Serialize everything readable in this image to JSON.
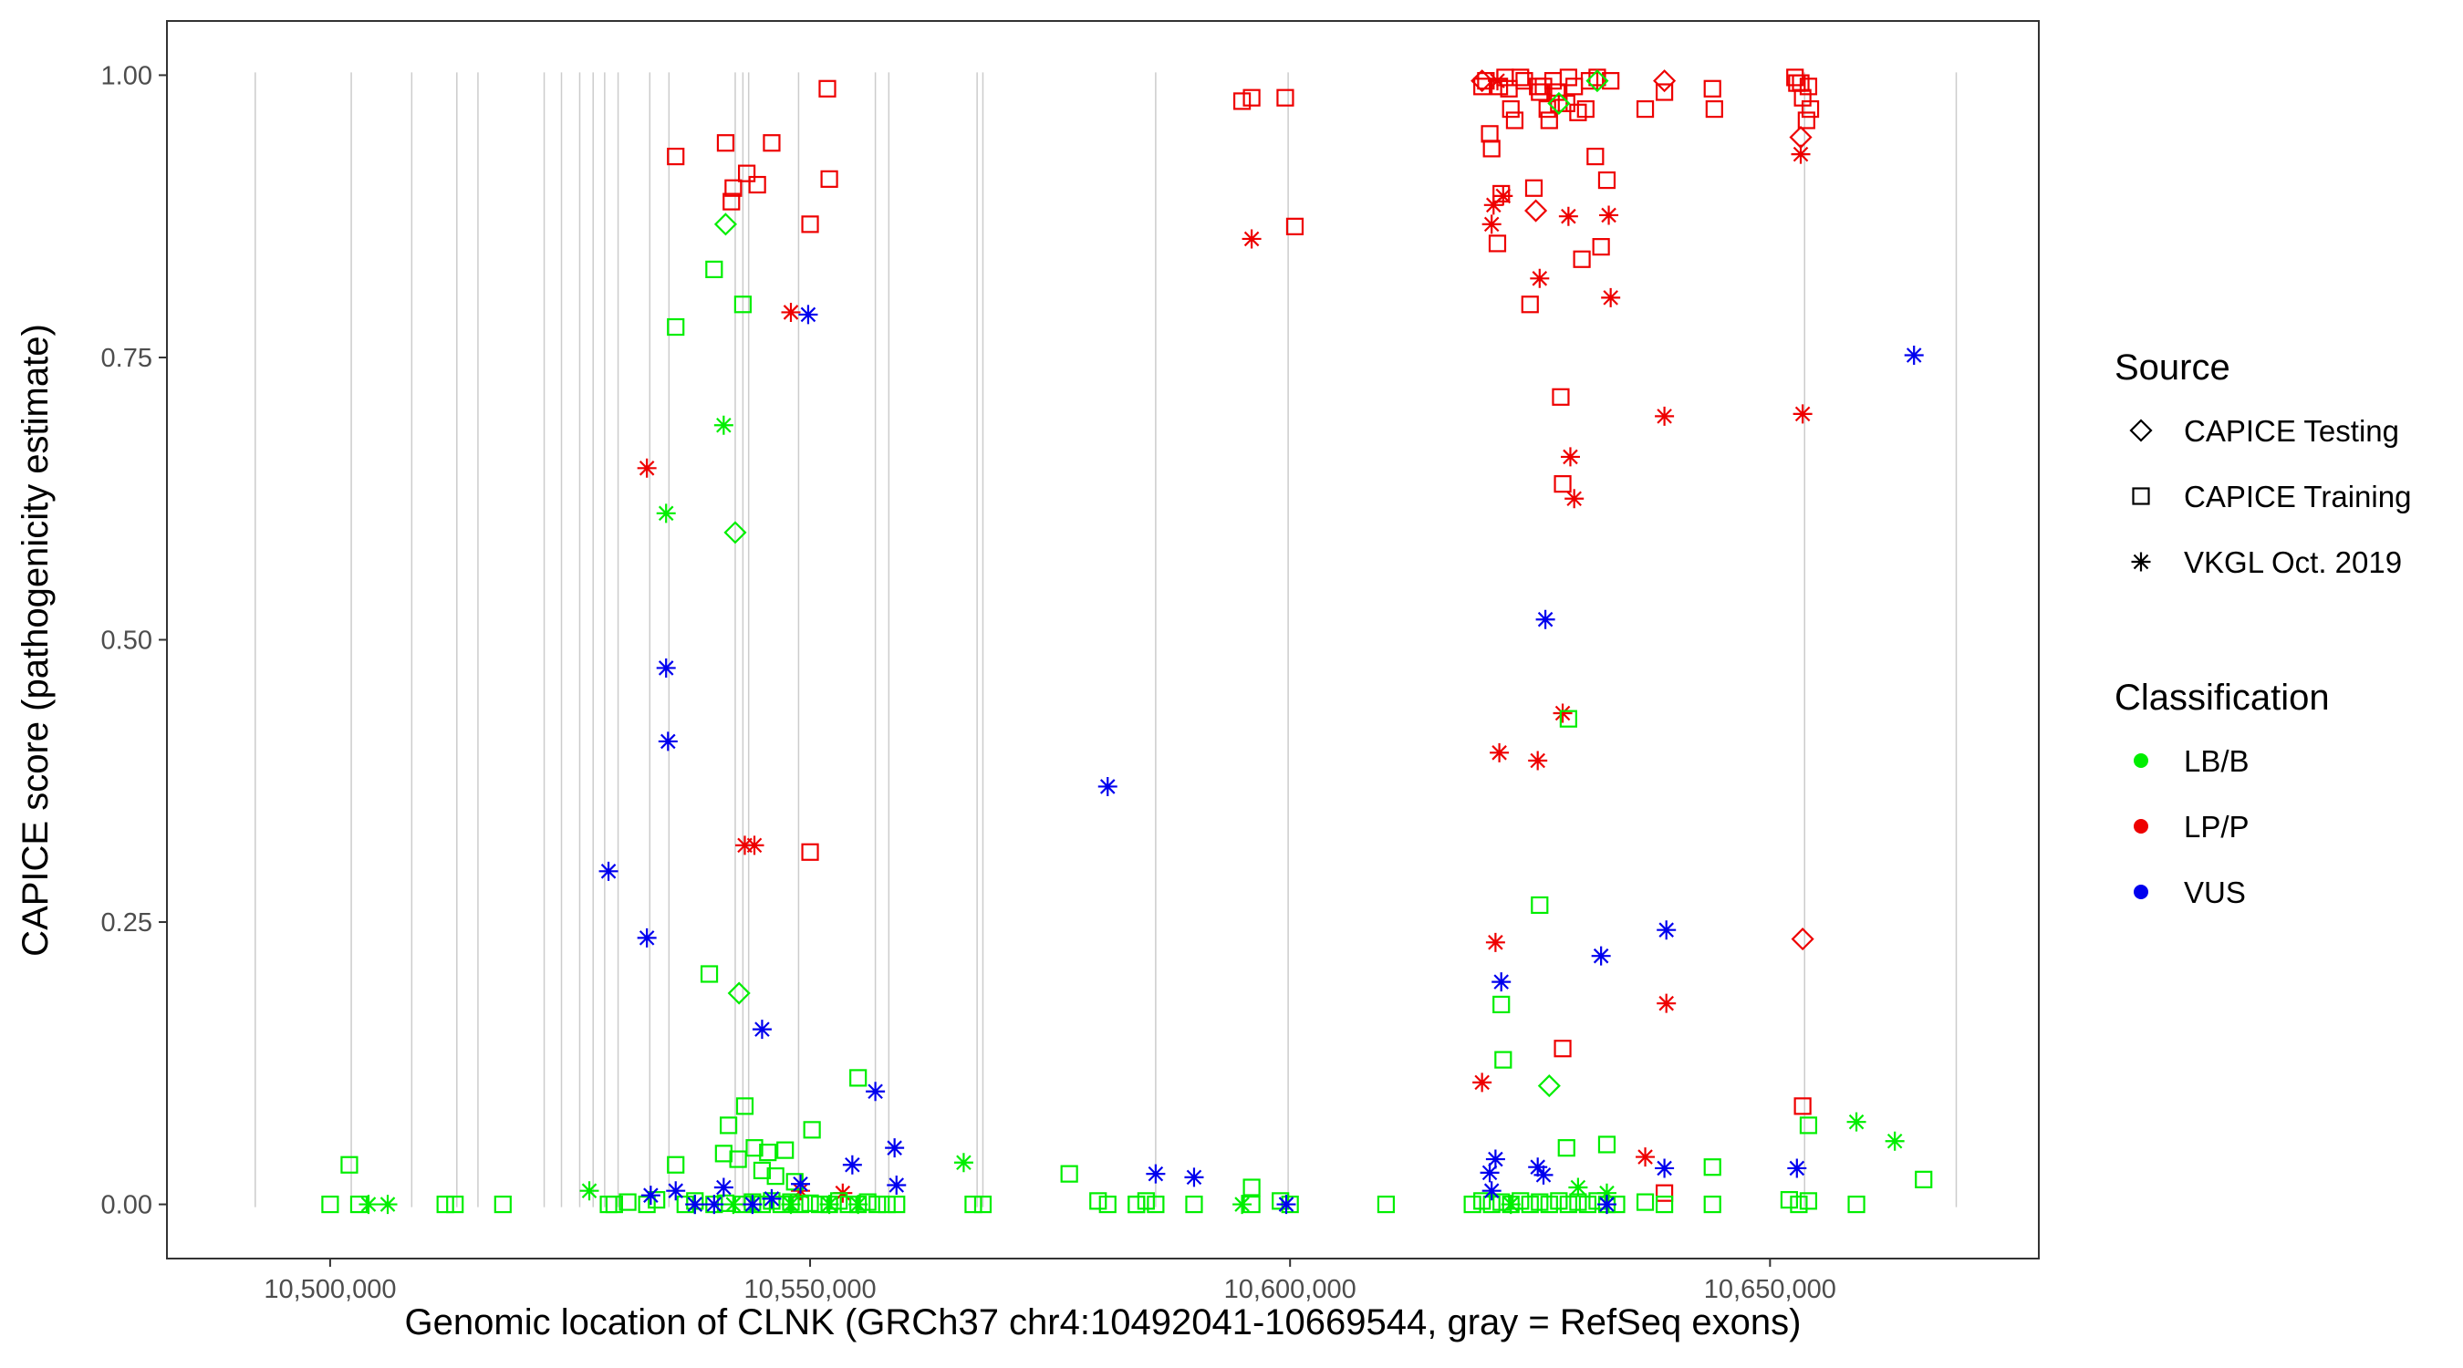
{
  "chart_data": {
    "type": "scatter",
    "title": "",
    "xlabel": "Genomic location of CLNK (GRCh37 chr4:10492041-10669544, gray = RefSeq exons)",
    "ylabel": "CAPICE score (pathogenicity estimate)",
    "xlim": [
      10483000,
      10678000
    ],
    "ylim": [
      -0.048,
      1.048
    ],
    "xticks": [
      10500000,
      10550000,
      10600000,
      10650000
    ],
    "xtick_labels": [
      "10,500,000",
      "10,550,000",
      "10,600,000",
      "10,650,000"
    ],
    "yticks": [
      0,
      0.25,
      0.5,
      0.75,
      1.0
    ],
    "ytick_labels": [
      "0.00",
      "0.25",
      "0.50",
      "0.75",
      "1.00"
    ],
    "grid": false,
    "exon_lines": [
      10492200,
      10502200,
      10508500,
      10513200,
      10515400,
      10522300,
      10524100,
      10526000,
      10527400,
      10528600,
      10530000,
      10533300,
      10535300,
      10542200,
      10543000,
      10543600,
      10548800,
      10556800,
      10558200,
      10567400,
      10568000,
      10586000,
      10599800,
      10653600,
      10669400
    ],
    "legend": {
      "placement": "right",
      "source_title": "Source",
      "source_items": [
        {
          "label": "CAPICE Testing",
          "shape": "diamond"
        },
        {
          "label": "CAPICE Training",
          "shape": "square"
        },
        {
          "label": "VKGL Oct. 2019",
          "shape": "asterisk"
        }
      ],
      "class_title": "Classification",
      "class_items": [
        {
          "label": "LB/B",
          "color": "#00ee00"
        },
        {
          "label": "LP/P",
          "color": "#ee0000"
        },
        {
          "label": "VUS",
          "color": "#0000ee"
        }
      ]
    },
    "colors": {
      "LB/B": "#00ee00",
      "LP/P": "#ee0000",
      "VUS": "#0000ee"
    },
    "series": [
      {
        "name": "LP/P CAPICE Training",
        "classification": "LP/P",
        "shape": "square",
        "x": [
          10536000,
          10541200,
          10541800,
          10542000,
          10543400,
          10544500,
          10546000,
          10550000,
          10551800,
          10552000,
          10595000,
          10596000,
          10599500,
          10600500,
          10620000,
          10620400,
          10620800,
          10621000,
          10621600,
          10621800,
          10622000,
          10622400,
          10622800,
          10623000,
          10623400,
          10624000,
          10624400,
          10625000,
          10625400,
          10625800,
          10626000,
          10626400,
          10626800,
          10627000,
          10627400,
          10627800,
          10628000,
          10628200,
          10628400,
          10628800,
          10629000,
          10629600,
          10630000,
          10630400,
          10630800,
          10631200,
          10631800,
          10632000,
          10632400,
          10633000,
          10633400,
          10637000,
          10639000,
          10644000,
          10644200,
          10652600,
          10652800,
          10653200,
          10653400,
          10653800,
          10654000,
          10654200,
          10550000,
          10653400
        ],
        "y": [
          0.928,
          0.94,
          0.888,
          0.9,
          0.913,
          0.903,
          0.94,
          0.868,
          0.988,
          0.908,
          0.977,
          0.98,
          0.98,
          0.866,
          0.99,
          0.995,
          0.948,
          0.935,
          0.851,
          0.99,
          0.895,
          0.998,
          0.988,
          0.97,
          0.96,
          0.998,
          0.995,
          0.797,
          0.9,
          0.99,
          0.985,
          0.99,
          0.97,
          0.96,
          0.995,
          0.985,
          0.975,
          0.715,
          0.638,
          0.975,
          0.998,
          0.99,
          0.967,
          0.837,
          0.97,
          0.995,
          0.928,
          0.998,
          0.848,
          0.907,
          0.995,
          0.97,
          0.985,
          0.988,
          0.97,
          0.998,
          0.993,
          0.993,
          0.98,
          0.96,
          0.99,
          0.97,
          0.312,
          0.087
        ]
      },
      {
        "name": "LP/P CAPICE Training low",
        "classification": "LP/P",
        "shape": "square",
        "x": [
          10628400,
          10639000
        ],
        "y": [
          0.138,
          0.01
        ]
      },
      {
        "name": "LP/P CAPICE Testing",
        "classification": "LP/P",
        "shape": "diamond",
        "x": [
          10620000,
          10639000,
          10653200,
          10625600
        ],
        "y": [
          0.995,
          0.995,
          0.945,
          0.88
        ]
      },
      {
        "name": "LP/P CAPICE Testing low",
        "classification": "LP/P",
        "shape": "diamond",
        "x": [
          10653400
        ],
        "y": [
          0.235
        ]
      },
      {
        "name": "LP/P VKGL",
        "classification": "LP/P",
        "shape": "asterisk",
        "x": [
          10548000,
          10596000,
          10621000,
          10621200,
          10621600,
          10622200,
          10626000,
          10629000,
          10633200,
          10633400,
          10639000,
          10653400,
          10533000,
          10543200,
          10544200,
          10621800,
          10625800,
          10628400,
          10629200,
          10629600,
          10621400,
          10620000,
          10639200,
          10637000,
          10653200,
          10553400,
          10549000
        ],
        "y": [
          0.79,
          0.855,
          0.868,
          0.885,
          0.995,
          0.893,
          0.82,
          0.875,
          0.876,
          0.803,
          0.698,
          0.7,
          0.652,
          0.318,
          0.318,
          0.4,
          0.393,
          0.435,
          0.662,
          0.625,
          0.232,
          0.108,
          0.178,
          0.042,
          0.93,
          0.01,
          0.012
        ]
      },
      {
        "name": "LB/B CAPICE Training",
        "classification": "LB/B",
        "shape": "square",
        "x": [
          10540000,
          10543000,
          10536000,
          10539500,
          10502000,
          10629000,
          10626000,
          10622000,
          10622200,
          10541500,
          10543200,
          10555000,
          10550200,
          10577000,
          10584000,
          10596000,
          10644000,
          10654000,
          10666000,
          10628800,
          10633000,
          10545600,
          10547400,
          10536000,
          10541000,
          10542500,
          10544200,
          10545000,
          10546400,
          10548400,
          10500000,
          10503000,
          10512000,
          10513000,
          10518000,
          10529000,
          10529600,
          10531000,
          10533000,
          10534000,
          10537000,
          10538000,
          10540000,
          10541200,
          10543000,
          10544000,
          10545000,
          10546000,
          10547000,
          10548000,
          10549000,
          10550000,
          10551000,
          10552000,
          10553000,
          10554000,
          10555000,
          10556000,
          10557000,
          10558000,
          10559000,
          10567000,
          10568000,
          10580000,
          10581000,
          10584000,
          10585000,
          10586000,
          10590000,
          10596000,
          10599000,
          10600000,
          10610000,
          10619000,
          10620000,
          10621000,
          10622000,
          10623000,
          10624000,
          10625000,
          10626000,
          10627000,
          10628000,
          10629000,
          10630000,
          10631000,
          10632000,
          10633000,
          10634000,
          10637000,
          10639000,
          10644000,
          10652000,
          10653000,
          10654000,
          10659000
        ],
        "y": [
          0.828,
          0.797,
          0.777,
          0.204,
          0.035,
          0.43,
          0.265,
          0.177,
          0.128,
          0.07,
          0.087,
          0.112,
          0.066,
          0.027,
          0.0,
          0.015,
          0.033,
          0.07,
          0.022,
          0.05,
          0.053,
          0.046,
          0.048,
          0.035,
          0.045,
          0.04,
          0.05,
          0.03,
          0.025,
          0.02,
          0.0,
          0.0,
          0.0,
          0.0,
          0.0,
          0.0,
          0.0,
          0.002,
          0.0,
          0.004,
          0.0,
          0.003,
          0.0,
          0.001,
          0.0,
          0.002,
          0.0,
          0.003,
          0.0,
          0.002,
          0.0,
          0.001,
          0.0,
          0.0,
          0.003,
          0.0,
          0.0,
          0.002,
          0.0,
          0.0,
          0.0,
          0.0,
          0.0,
          0.003,
          0.0,
          0.0,
          0.003,
          0.0,
          0.0,
          0.0,
          0.003,
          0.0,
          0.0,
          0.0,
          0.003,
          0.0,
          0.002,
          0.0,
          0.003,
          0.0,
          0.002,
          0.0,
          0.003,
          0.0,
          0.002,
          0.0,
          0.003,
          0.0,
          0.0,
          0.002,
          0.0,
          0.0,
          0.004,
          0.0,
          0.003,
          0.0
        ]
      },
      {
        "name": "LB/B CAPICE Testing",
        "classification": "LB/B",
        "shape": "diamond",
        "x": [
          10541200,
          10542200,
          10542600,
          10627000,
          10628000,
          10632000
        ],
        "y": [
          0.868,
          0.595,
          0.187,
          0.105,
          0.975,
          0.995
        ]
      },
      {
        "name": "LB/B VKGL",
        "classification": "LB/B",
        "shape": "asterisk",
        "x": [
          10541000,
          10535000,
          10566000,
          10659000,
          10663000,
          10504000,
          10506000,
          10527000,
          10538000,
          10542000,
          10548000,
          10552000,
          10555000,
          10595000,
          10623000,
          10630000,
          10633000
        ],
        "y": [
          0.69,
          0.612,
          0.037,
          0.073,
          0.056,
          0.0,
          0.0,
          0.012,
          0.0,
          0.0,
          0.0,
          0.0,
          0.0,
          0.0,
          0.0,
          0.015,
          0.01
        ]
      },
      {
        "name": "VUS VKGL",
        "classification": "VUS",
        "shape": "asterisk",
        "x": [
          10549800,
          10665000,
          10535000,
          10535200,
          10581000,
          10529000,
          10533000,
          10545000,
          10556800,
          10626600,
          10639200,
          10632400,
          10622000,
          10558800,
          10554400,
          10586000,
          10590000,
          10599600,
          10559000,
          10621400,
          10620800,
          10625800,
          10626400,
          10639000,
          10652800,
          10533400,
          10536000,
          10538000,
          10540000,
          10541000,
          10544000,
          10546000,
          10549000,
          10621000,
          10633000
        ],
        "y": [
          0.788,
          0.752,
          0.475,
          0.41,
          0.37,
          0.295,
          0.236,
          0.155,
          0.1,
          0.518,
          0.243,
          0.22,
          0.197,
          0.05,
          0.035,
          0.027,
          0.024,
          0.0,
          0.017,
          0.04,
          0.028,
          0.033,
          0.026,
          0.032,
          0.032,
          0.008,
          0.012,
          0.0,
          0.0,
          0.015,
          0.0,
          0.005,
          0.018,
          0.012,
          0.0
        ]
      }
    ]
  }
}
